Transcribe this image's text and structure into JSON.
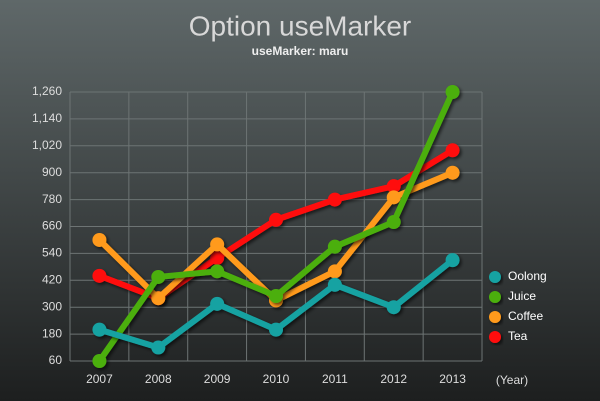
{
  "chart_data": {
    "type": "line",
    "title": "Option useMarker",
    "subtitle": "useMarker: maru",
    "x_label": "(Year)",
    "categories": [
      "2007",
      "2008",
      "2009",
      "2010",
      "2011",
      "2012",
      "2013"
    ],
    "series": [
      {
        "name": "Oolong",
        "color": "#16a2a2",
        "values": [
          200,
          120,
          315,
          200,
          400,
          300,
          510
        ]
      },
      {
        "name": "Juice",
        "color": "#4caf10",
        "values": [
          60,
          435,
          460,
          350,
          570,
          680,
          1260
        ]
      },
      {
        "name": "Coffee",
        "color": "#ff9a1a",
        "values": [
          600,
          340,
          580,
          330,
          460,
          790,
          900
        ]
      },
      {
        "name": "Tea",
        "color": "#ff1010",
        "values": [
          440,
          340,
          520,
          690,
          780,
          840,
          1000
        ]
      }
    ],
    "ylim": [
      60,
      1260
    ],
    "yticks": [
      60,
      180,
      300,
      420,
      540,
      660,
      780,
      900,
      {
        "value": 1020,
        "label": "1,020"
      },
      {
        "value": 1140,
        "label": "1,140"
      },
      {
        "value": 1260,
        "label": "1,260"
      }
    ],
    "grid": true,
    "legend": "right",
    "marker": "circle"
  }
}
